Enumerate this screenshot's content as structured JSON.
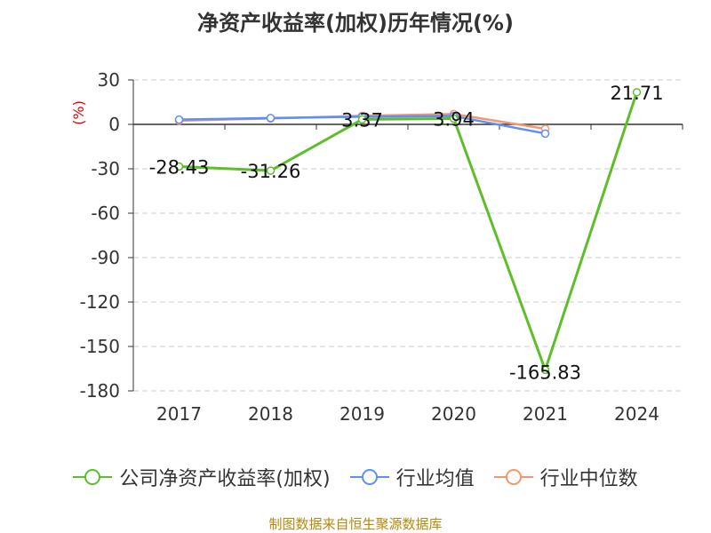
{
  "chart_data": {
    "type": "line",
    "title": "净资产收益率(加权)历年情况(%)",
    "ylabel": "(%)",
    "xlabel": "",
    "categories": [
      "2017",
      "2018",
      "2019",
      "2020",
      "2021",
      "2024"
    ],
    "ylim": [
      -180,
      30
    ],
    "yticks": [
      30,
      0,
      -30,
      -60,
      -90,
      -120,
      -150,
      -180
    ],
    "grid": true,
    "legend_position": "bottom",
    "series": [
      {
        "name": "公司净资产收益率(加权)",
        "color": "#5cbf2a",
        "values": [
          -28.43,
          -31.26,
          3.37,
          3.94,
          -165.83,
          21.71
        ],
        "labels": [
          "-28.43",
          "-31.26",
          "3.37",
          "3.94",
          "-165.83",
          "21.71"
        ]
      },
      {
        "name": "行业均值",
        "color": "#5b8ff9",
        "values": [
          3.2,
          4.3,
          5.2,
          5.6,
          -6.2,
          null
        ],
        "labels": []
      },
      {
        "name": "行业中位数",
        "color": "#f4976c",
        "values": [
          2.5,
          4.0,
          5.8,
          7.0,
          -3.0,
          null
        ],
        "labels": []
      }
    ]
  },
  "source_text": "制图数据来自恒生聚源数据库"
}
